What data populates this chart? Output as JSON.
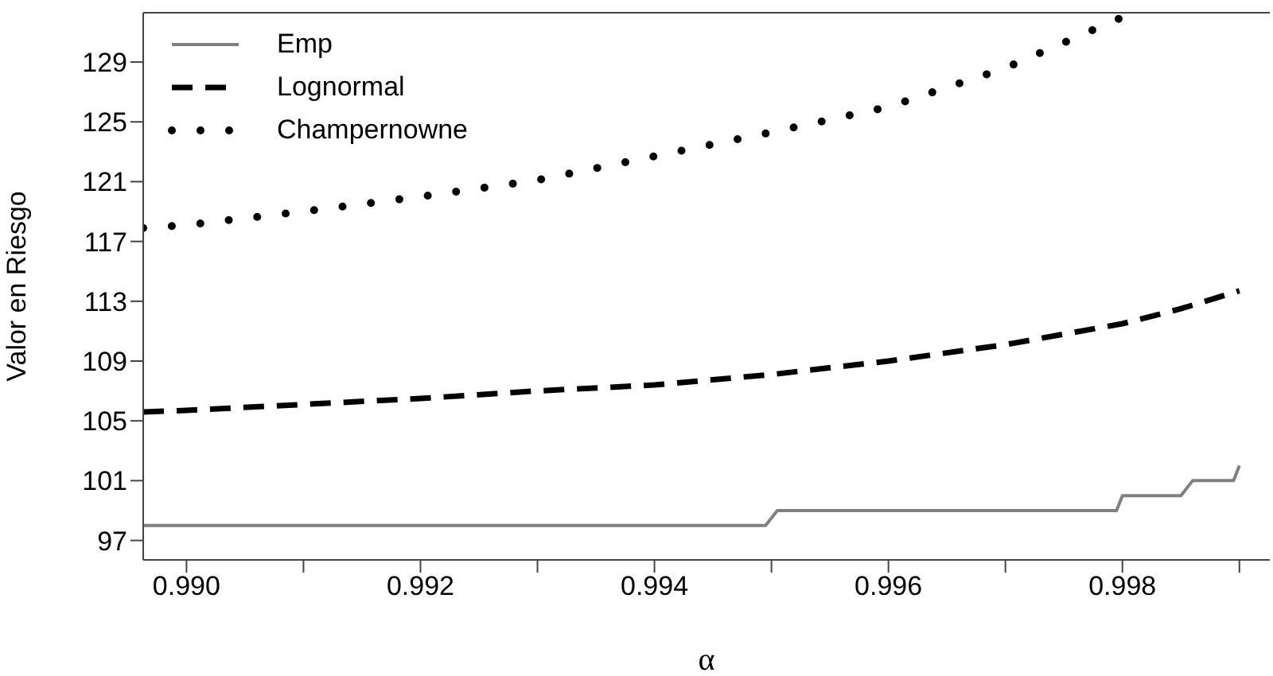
{
  "chart_data": {
    "type": "line",
    "xlabel": "α",
    "ylabel": "Valor en Riesgo",
    "xlim": [
      0.98963,
      0.99926
    ],
    "ylim": [
      95.7,
      132.3
    ],
    "xticks": [
      {
        "value": 0.99,
        "label": "0.990"
      },
      {
        "value": 0.991,
        "label": null
      },
      {
        "value": 0.992,
        "label": "0.992"
      },
      {
        "value": 0.993,
        "label": null
      },
      {
        "value": 0.994,
        "label": "0.994"
      },
      {
        "value": 0.995,
        "label": null
      },
      {
        "value": 0.996,
        "label": "0.996"
      },
      {
        "value": 0.997,
        "label": null
      },
      {
        "value": 0.998,
        "label": "0.998"
      },
      {
        "value": 0.999,
        "label": null
      }
    ],
    "yticks": [
      97,
      101,
      105,
      109,
      113,
      117,
      121,
      125,
      129
    ],
    "grid": false,
    "legend": "top left",
    "marker": "none",
    "series": [
      {
        "name": "Emp",
        "color": "#808080",
        "line_style": "solid",
        "x": [
          0.98963,
          0.99495,
          0.99505,
          0.99795,
          0.998,
          0.9985,
          0.9986,
          0.99895,
          0.999
        ],
        "values": [
          98,
          98,
          99,
          99,
          100,
          100,
          101,
          101,
          102
        ]
      },
      {
        "name": "Lognormal",
        "color": "#000000",
        "line_style": "dashed",
        "x": [
          0.98963,
          0.99,
          0.991,
          0.992,
          0.993,
          0.994,
          0.995,
          0.996,
          0.997,
          0.998,
          0.9985,
          0.999
        ],
        "values": [
          105.6,
          105.7,
          106.1,
          106.5,
          107.0,
          107.4,
          108.1,
          109.0,
          110.1,
          111.5,
          112.5,
          113.7
        ]
      },
      {
        "name": "Champernowne",
        "color": "#000000",
        "line_style": "dotted",
        "x": [
          0.98963,
          0.99,
          0.991,
          0.992,
          0.993,
          0.994,
          0.995,
          0.996,
          0.997,
          0.998
        ],
        "values": [
          117.9,
          118.1,
          119.0,
          120.0,
          121.1,
          122.7,
          124.3,
          126.0,
          128.6,
          132.0
        ]
      }
    ]
  }
}
